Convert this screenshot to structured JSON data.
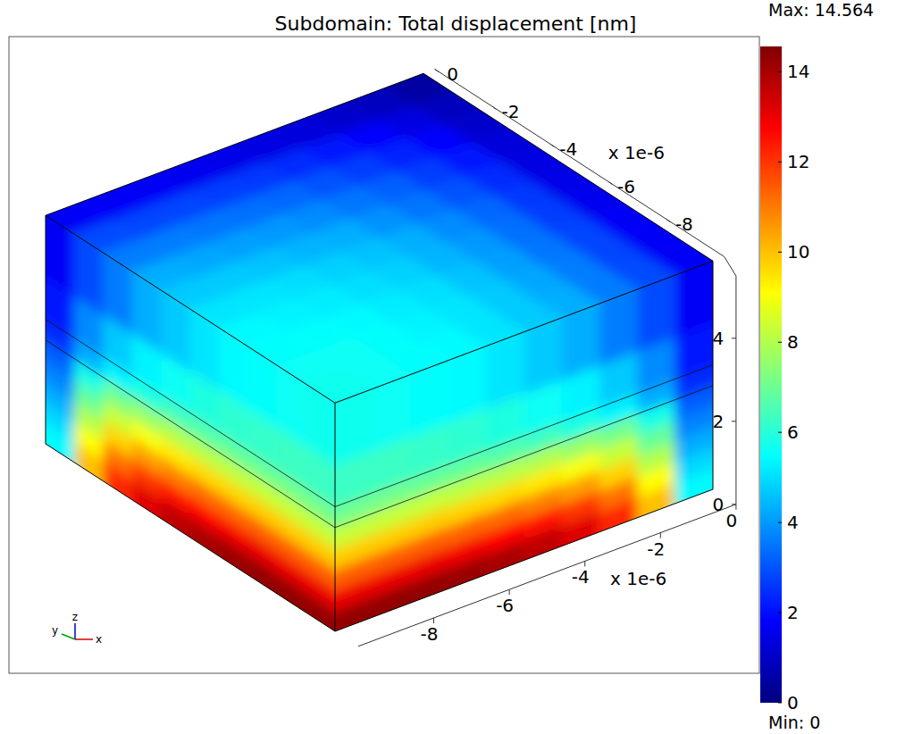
{
  "chart_data": {
    "type": "surface3d",
    "title": "Subdomain: Total displacement [nm]",
    "axis_names": {
      "x": "x",
      "y": "y",
      "z": "z"
    },
    "xlim": [
      -10,
      0
    ],
    "xticks": [
      -8,
      -6,
      -4,
      -2,
      0
    ],
    "x_multiplier": "x 1e-6",
    "ylim": [
      -10,
      0
    ],
    "yticks": [
      -8,
      -6,
      -4,
      -2,
      0
    ],
    "y_multiplier": "x 1e-6",
    "zlim": [
      0,
      5.5
    ],
    "zticks": [
      0,
      2,
      4
    ],
    "layer_boundaries": [
      2.5,
      3
    ],
    "colorbar": {
      "min": {
        "value": 0,
        "label": "Min: 0"
      },
      "max": {
        "value": 14.564,
        "label": "Max: 14.564"
      },
      "ticks": [
        0,
        2,
        4,
        6,
        8,
        10,
        12,
        14
      ]
    },
    "top_face": {
      "x_edges": [
        0,
        -1,
        -2,
        -3,
        -4,
        -5,
        -6,
        -7,
        -8,
        -9,
        -10
      ],
      "y_edges": [
        0,
        -1,
        -2,
        -3,
        -4,
        -5,
        -6,
        -7,
        -8,
        -9,
        -10
      ],
      "values": [
        [
          0.5,
          0.9,
          1.1,
          1.3,
          1.4,
          1.5,
          1.6,
          1.7,
          1.7,
          1.7
        ],
        [
          0.9,
          1.4,
          1.8,
          2.1,
          2.4,
          2.6,
          2.7,
          2.8,
          2.8,
          2.9
        ],
        [
          1.1,
          1.8,
          2.3,
          2.7,
          3.0,
          3.3,
          3.4,
          3.5,
          3.6,
          3.6
        ],
        [
          1.3,
          2.1,
          2.7,
          3.2,
          3.5,
          3.8,
          4.0,
          4.1,
          4.2,
          4.3
        ],
        [
          1.4,
          2.4,
          3.0,
          3.5,
          3.9,
          4.3,
          4.4,
          4.6,
          4.7,
          4.7
        ],
        [
          1.5,
          2.6,
          3.3,
          3.8,
          4.3,
          4.6,
          4.8,
          5.0,
          5.1,
          5.1
        ],
        [
          1.6,
          2.7,
          3.4,
          4.0,
          4.4,
          4.8,
          5.0,
          5.2,
          5.3,
          5.4
        ],
        [
          1.7,
          2.8,
          3.5,
          4.1,
          4.6,
          5.0,
          5.2,
          5.4,
          5.5,
          5.5
        ],
        [
          1.7,
          2.8,
          3.6,
          4.2,
          4.7,
          5.1,
          5.3,
          5.5,
          5.6,
          5.6
        ],
        [
          1.7,
          2.9,
          3.6,
          4.3,
          4.7,
          5.1,
          5.4,
          5.5,
          5.6,
          5.7
        ]
      ]
    },
    "front_face": {
      "x_edges": [
        -10,
        -9,
        -8,
        -7,
        -6,
        -5,
        -4,
        -3,
        -2,
        -1,
        0
      ],
      "z_edges": [
        0,
        0.5,
        1,
        1.5,
        2,
        2.5,
        3,
        4,
        5.5
      ],
      "values": [
        [
          14.3,
          14.3,
          14.3,
          14.2,
          14.0,
          13.7,
          13.2,
          12.2,
          10.0,
          5.4
        ],
        [
          13.0,
          13.0,
          13.0,
          12.9,
          12.7,
          12.5,
          12.0,
          11.1,
          9.1,
          4.9
        ],
        [
          11.4,
          11.4,
          11.4,
          11.3,
          11.2,
          10.9,
          10.5,
          9.7,
          8.0,
          4.3
        ],
        [
          9.8,
          9.8,
          9.8,
          9.7,
          9.6,
          9.4,
          9.0,
          8.3,
          6.9,
          3.7
        ],
        [
          8.3,
          8.3,
          8.3,
          8.2,
          8.1,
          8.0,
          7.6,
          7.1,
          5.8,
          3.2
        ],
        [
          7.1,
          7.1,
          7.0,
          6.9,
          6.7,
          6.4,
          5.9,
          5.3,
          4.3,
          2.4
        ],
        [
          6.3,
          6.3,
          6.2,
          6.1,
          5.9,
          5.6,
          5.3,
          4.7,
          3.8,
          2.1
        ],
        [
          5.7,
          5.6,
          5.5,
          5.4,
          5.1,
          4.7,
          4.3,
          3.6,
          2.9,
          1.7
        ]
      ]
    },
    "left_face": {
      "y_edges": [
        0,
        -1,
        -2,
        -3,
        -4,
        -5,
        -6,
        -7,
        -8,
        -9,
        -10
      ],
      "z_edges": [
        0,
        0.5,
        1,
        1.5,
        2,
        2.5,
        3,
        4,
        5.5
      ],
      "values": [
        [
          5.4,
          10.0,
          12.2,
          13.2,
          13.7,
          14.0,
          14.2,
          14.3,
          14.3,
          14.3
        ],
        [
          4.9,
          9.1,
          11.1,
          12.0,
          12.5,
          12.7,
          12.9,
          13.0,
          13.0,
          13.0
        ],
        [
          4.3,
          8.0,
          9.7,
          10.5,
          10.9,
          11.2,
          11.3,
          11.4,
          11.4,
          11.4
        ],
        [
          3.7,
          6.9,
          8.3,
          9.0,
          9.4,
          9.6,
          9.7,
          9.8,
          9.8,
          9.8
        ],
        [
          3.2,
          5.8,
          7.1,
          7.6,
          8.0,
          8.1,
          8.2,
          8.3,
          8.3,
          8.3
        ],
        [
          2.4,
          4.3,
          5.3,
          5.9,
          6.4,
          6.7,
          6.9,
          7.0,
          7.1,
          7.1
        ],
        [
          2.1,
          3.8,
          4.7,
          5.3,
          5.6,
          5.9,
          6.1,
          6.2,
          6.3,
          6.3
        ],
        [
          1.7,
          2.9,
          3.6,
          4.3,
          4.7,
          5.1,
          5.4,
          5.5,
          5.6,
          5.7
        ]
      ]
    }
  }
}
